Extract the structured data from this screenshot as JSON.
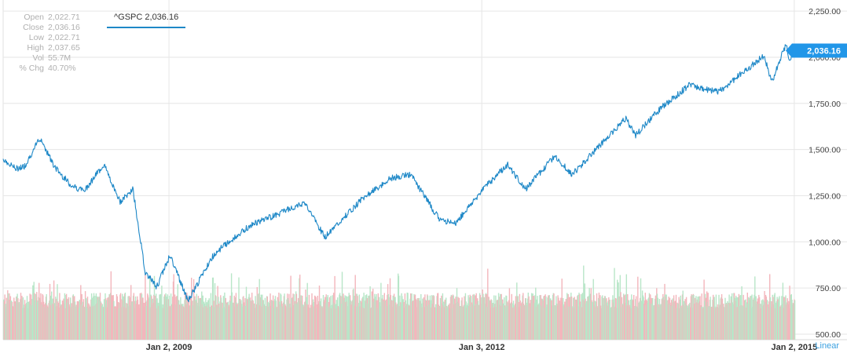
{
  "ohlc": {
    "rows": [
      {
        "label": "Open",
        "value": "2,022.71"
      },
      {
        "label": "Close",
        "value": "2,036.16"
      },
      {
        "label": "Low",
        "value": "2,022.71"
      },
      {
        "label": "High",
        "value": "2,037.65"
      },
      {
        "label": "Vol",
        "value": "55.7M"
      },
      {
        "label": "% Chg",
        "value": "40.70%"
      }
    ]
  },
  "series_tag": "^GSPC 2,036.16",
  "last_price_label": "2,036.16",
  "scale_label": "Linear",
  "colors": {
    "line": "#1e88c7",
    "badge": "#2196e8",
    "vol_up": "#b8e6c8",
    "vol_down": "#f3b6bc",
    "grid": "#e6e6e6"
  },
  "chart_data": {
    "type": "line",
    "title": "",
    "xlabel": "",
    "ylabel": "",
    "ylim": [
      470,
      2310
    ],
    "grid": true,
    "y_ticks": [
      "2,250.00",
      "2,000.00",
      "1,750.00",
      "1,500.00",
      "1,250.00",
      "1,000.00",
      "750.00",
      "500.00"
    ],
    "x_ticks": [
      "Jan 2, 2009",
      "Jan 3, 2012",
      "Jan 2, 2015"
    ],
    "series": [
      {
        "name": "^GSPC",
        "x": [
          "2007-06-01",
          "2007-07-15",
          "2007-08-15",
          "2007-10-09",
          "2007-11-26",
          "2008-01-22",
          "2008-03-10",
          "2008-05-19",
          "2008-07-15",
          "2008-08-29",
          "2008-10-10",
          "2008-11-20",
          "2009-01-06",
          "2009-03-09",
          "2009-06-12",
          "2009-10-19",
          "2010-01-19",
          "2010-04-23",
          "2010-07-02",
          "2010-11-05",
          "2011-02-18",
          "2011-04-29",
          "2011-08-08",
          "2011-10-03",
          "2012-01-03",
          "2012-04-02",
          "2012-06-04",
          "2012-09-14",
          "2012-11-15",
          "2013-05-21",
          "2013-06-24",
          "2013-09-18",
          "2013-12-31",
          "2014-04-11",
          "2014-09-18",
          "2014-10-15",
          "2014-12-05",
          "2014-12-16",
          "2015-01-02"
        ],
        "values": [
          1450,
          1395,
          1410,
          1565,
          1410,
          1310,
          1275,
          1420,
          1215,
          1285,
          840,
          755,
          930,
          680,
          940,
          1095,
          1150,
          1215,
          1025,
          1225,
          1345,
          1365,
          1120,
          1100,
          1277,
          1420,
          1285,
          1465,
          1365,
          1670,
          1575,
          1720,
          1850,
          1810,
          2010,
          1865,
          2075,
          1975,
          2036
        ]
      }
    ],
    "volume": {
      "name": "Vol",
      "yaxis_max_display": 4.6
    }
  }
}
